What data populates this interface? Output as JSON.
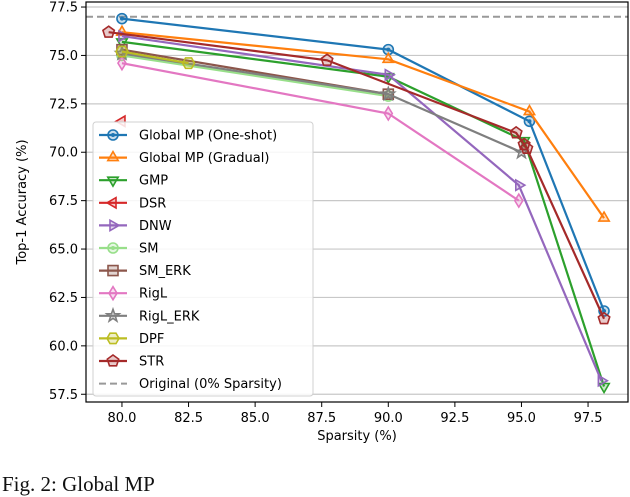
{
  "chart_data": {
    "type": "line",
    "xlabel": "Sparsity (%)",
    "ylabel": "Top-1 Accuracy (%)",
    "xlim": [
      78.65,
      99.0
    ],
    "ylim": [
      57.1,
      77.76
    ],
    "xticks": [
      "80.0",
      "82.5",
      "85.0",
      "87.5",
      "90.0",
      "92.5",
      "95.0",
      "97.5"
    ],
    "yticks": [
      "57.5",
      "60.0",
      "62.5",
      "65.0",
      "67.5",
      "70.0",
      "72.5",
      "75.0",
      "77.5"
    ],
    "grid": "horizontal",
    "legend_position": "lower-left",
    "series": [
      {
        "name": "Global MP (One-shot)",
        "color": "#1f77b4",
        "marker": "circle",
        "x": [
          80,
          90,
          95.3,
          98.1
        ],
        "y": [
          76.9,
          75.3,
          71.6,
          61.8
        ]
      },
      {
        "name": "Global MP (Gradual)",
        "color": "#ff7f0e",
        "marker": "triangle-up",
        "x": [
          80,
          90,
          95.3,
          98.1
        ],
        "y": [
          76.2,
          74.8,
          72.1,
          66.6
        ]
      },
      {
        "name": "GMP",
        "color": "#2ca02c",
        "marker": "triangle-down",
        "x": [
          80,
          90,
          95.1,
          98.1
        ],
        "y": [
          75.7,
          73.9,
          70.6,
          57.9
        ]
      },
      {
        "name": "DSR",
        "color": "#d62728",
        "marker": "triangle-left",
        "x": [
          80
        ],
        "y": [
          71.6
        ]
      },
      {
        "name": "DNW",
        "color": "#9467bd",
        "marker": "triangle-right",
        "x": [
          80,
          90,
          94.9,
          98.0
        ],
        "y": [
          76.0,
          74.0,
          68.3,
          58.2
        ]
      },
      {
        "name": "SM",
        "color": "#98df8a",
        "marker": "circle",
        "x": [
          80,
          90
        ],
        "y": [
          75.0,
          72.9
        ]
      },
      {
        "name": "SM_ERK",
        "color": "#8c564b",
        "marker": "square",
        "x": [
          80,
          90
        ],
        "y": [
          75.3,
          73.0
        ]
      },
      {
        "name": "RigL",
        "color": "#e377c2",
        "marker": "diamond",
        "x": [
          80,
          90,
          94.9
        ],
        "y": [
          74.6,
          72.0,
          67.5
        ]
      },
      {
        "name": "RigL_ERK",
        "color": "#7f7f7f",
        "marker": "star",
        "x": [
          80,
          90,
          95.0
        ],
        "y": [
          75.1,
          73.0,
          70.0
        ]
      },
      {
        "name": "DPF",
        "color": "#bcbd22",
        "marker": "hexagon",
        "x": [
          80,
          82.5
        ],
        "y": [
          75.2,
          74.6
        ]
      },
      {
        "name": "STR",
        "color": "#a52a2a",
        "marker": "pentagon",
        "x": [
          79.5,
          87.7,
          94.8,
          95.1,
          95.2,
          98.1
        ],
        "y": [
          76.2,
          74.75,
          71.0,
          70.4,
          70.2,
          61.4
        ]
      }
    ],
    "reference_line": {
      "name": "Original (0% Sparsity)",
      "y": 77.0,
      "color": "#999999",
      "style": "dashed"
    }
  },
  "caption": "Fig. 2: Global MP"
}
